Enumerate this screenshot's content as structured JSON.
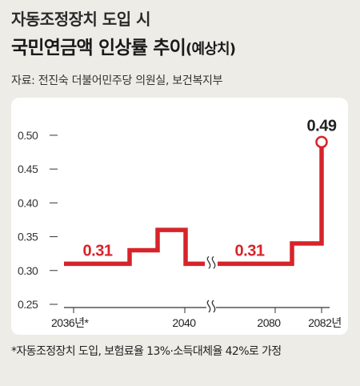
{
  "header": {
    "subtitle": "자동조정장치 도입 시",
    "title": "국민연금액 인상률 추이",
    "title_suffix": "(예상치)",
    "source": "자료: 전진숙 더불어민주당 의원실, 보건복지부"
  },
  "footnote": "*자동조정장치 도입, 보험료율 13%·소득대체율 42%로 가정",
  "chart_data": {
    "type": "line",
    "title": "국민연금액 인상률 추이",
    "ylim": [
      0.25,
      0.52
    ],
    "ytick_values": [
      0.25,
      0.3,
      0.35,
      0.4,
      0.45,
      0.5
    ],
    "ytick_labels": [
      "0.25",
      "0.30",
      "0.35",
      "0.40",
      "0.45",
      "0.50"
    ],
    "xtick_labels": [
      "2036년*",
      "2040",
      "2080",
      "2082년"
    ],
    "axis_break": true,
    "series": [
      {
        "color": "#d7242a",
        "steps_before_break": [
          0.31,
          0.33,
          0.36,
          0.31
        ],
        "steps_after_break": [
          0.31,
          0.34,
          0.49
        ]
      }
    ],
    "annotations": [
      {
        "label": "0.31",
        "y": 0.31,
        "segment": "before_break"
      },
      {
        "label": "0.31",
        "y": 0.31,
        "segment": "after_break"
      },
      {
        "label": "0.49",
        "y": 0.49,
        "segment": "end"
      }
    ]
  }
}
